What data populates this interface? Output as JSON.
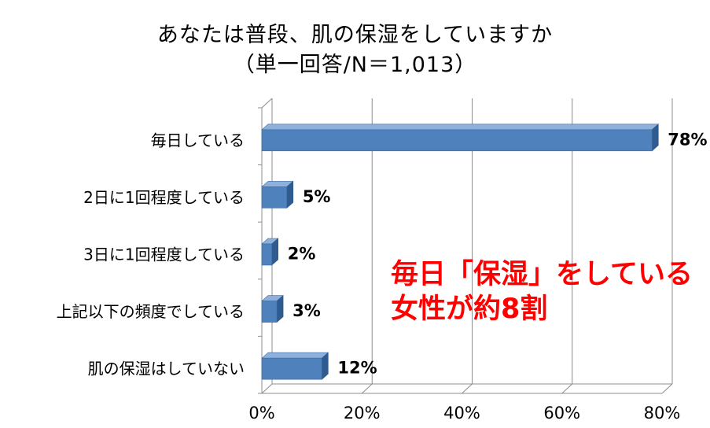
{
  "chart_data": {
    "type": "bar",
    "orientation": "horizontal",
    "style": "3d",
    "title": "あなたは普段、肌の保湿をしていますか",
    "subtitle": "（単一回答/N＝1,013）",
    "categories": [
      "毎日している",
      "2日に1回程度している",
      "3日に1回程度している",
      "上記以下の頻度でしている",
      "肌の保湿はしていない"
    ],
    "values": [
      78,
      5,
      2,
      3,
      12
    ],
    "value_labels": [
      "78%",
      "5%",
      "2%",
      "3%",
      "12%"
    ],
    "xlim": [
      0,
      80
    ],
    "xticks": [
      "0%",
      "20%",
      "40%",
      "60%",
      "80%"
    ],
    "grid": true,
    "legend": "none",
    "bar_color": "#4f81bd",
    "annotation": {
      "lines": [
        "毎日「保湿」をしている",
        "女性が約8割"
      ],
      "color": "#ff0000"
    }
  }
}
